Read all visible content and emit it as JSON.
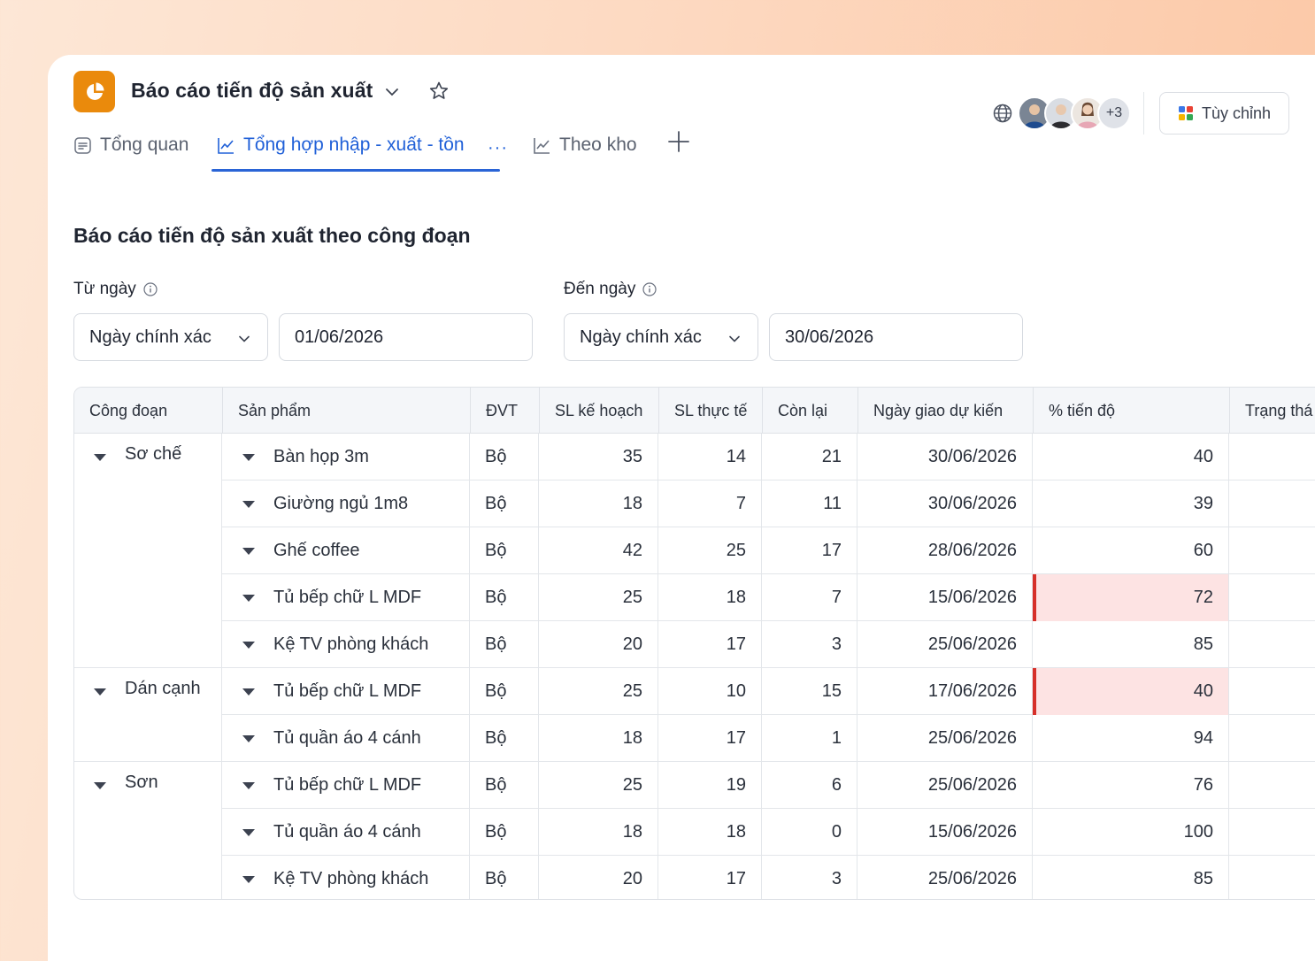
{
  "header": {
    "title": "Báo cáo tiến độ sản xuất",
    "accent_color": "#ea8a0c"
  },
  "tabs": [
    {
      "label": "Tổng quan",
      "icon": "document-icon",
      "active": false
    },
    {
      "label": "Tổng hợp nhập - xuất - tồn",
      "icon": "line-chart-icon",
      "active": true,
      "more": "···"
    },
    {
      "label": "Theo kho",
      "icon": "line-chart-icon",
      "active": false
    }
  ],
  "collaborators": {
    "more_label": "+3"
  },
  "customize_button": {
    "label": "Tùy chỉnh"
  },
  "section": {
    "title": "Báo cáo tiến độ sản xuất theo công đoạn"
  },
  "filters": {
    "from": {
      "label": "Từ ngày",
      "mode": "Ngày chính xác",
      "date": "01/06/2026"
    },
    "to": {
      "label": "Đến ngày",
      "mode": "Ngày chính xác",
      "date": "30/06/2026"
    }
  },
  "table": {
    "columns": [
      "Công đoạn",
      "Sản phẩm",
      "ĐVT",
      "SL kế hoạch",
      "SL thực tế",
      "Còn lại",
      "Ngày giao dự kiến",
      "% tiến độ",
      "Trạng thá"
    ],
    "groups": [
      {
        "name": "Sơ chế",
        "rows": 5
      },
      {
        "name": "Dán cạnh",
        "rows": 2
      },
      {
        "name": "Sơn",
        "rows": 3
      }
    ],
    "rows": [
      {
        "product": "Bàn họp 3m",
        "unit": "Bộ",
        "plan": "35",
        "actual": "14",
        "remain": "21",
        "date": "30/06/2026",
        "progress": "40",
        "alert": false
      },
      {
        "product": "Giường ngủ 1m8",
        "unit": "Bộ",
        "plan": "18",
        "actual": "7",
        "remain": "11",
        "date": "30/06/2026",
        "progress": "39",
        "alert": false
      },
      {
        "product": "Ghế coffee",
        "unit": "Bộ",
        "plan": "42",
        "actual": "25",
        "remain": "17",
        "date": "28/06/2026",
        "progress": "60",
        "alert": false
      },
      {
        "product": "Tủ bếp chữ L MDF",
        "unit": "Bộ",
        "plan": "25",
        "actual": "18",
        "remain": "7",
        "date": "15/06/2026",
        "progress": "72",
        "alert": true
      },
      {
        "product": "Kệ TV phòng khách",
        "unit": "Bộ",
        "plan": "20",
        "actual": "17",
        "remain": "3",
        "date": "25/06/2026",
        "progress": "85",
        "alert": false
      },
      {
        "product": "Tủ bếp chữ L MDF",
        "unit": "Bộ",
        "plan": "25",
        "actual": "10",
        "remain": "15",
        "date": "17/06/2026",
        "progress": "40",
        "alert": true
      },
      {
        "product": "Tủ quần áo 4 cánh",
        "unit": "Bộ",
        "plan": "18",
        "actual": "17",
        "remain": "1",
        "date": "25/06/2026",
        "progress": "94",
        "alert": false
      },
      {
        "product": "Tủ bếp chữ L MDF",
        "unit": "Bộ",
        "plan": "25",
        "actual": "19",
        "remain": "6",
        "date": "25/06/2026",
        "progress": "76",
        "alert": false
      },
      {
        "product": "Tủ quần áo 4 cánh",
        "unit": "Bộ",
        "plan": "18",
        "actual": "18",
        "remain": "0",
        "date": "15/06/2026",
        "progress": "100",
        "alert": false
      },
      {
        "product": "Kệ TV phòng khách",
        "unit": "Bộ",
        "plan": "20",
        "actual": "17",
        "remain": "3",
        "date": "25/06/2026",
        "progress": "85",
        "alert": false
      }
    ]
  }
}
